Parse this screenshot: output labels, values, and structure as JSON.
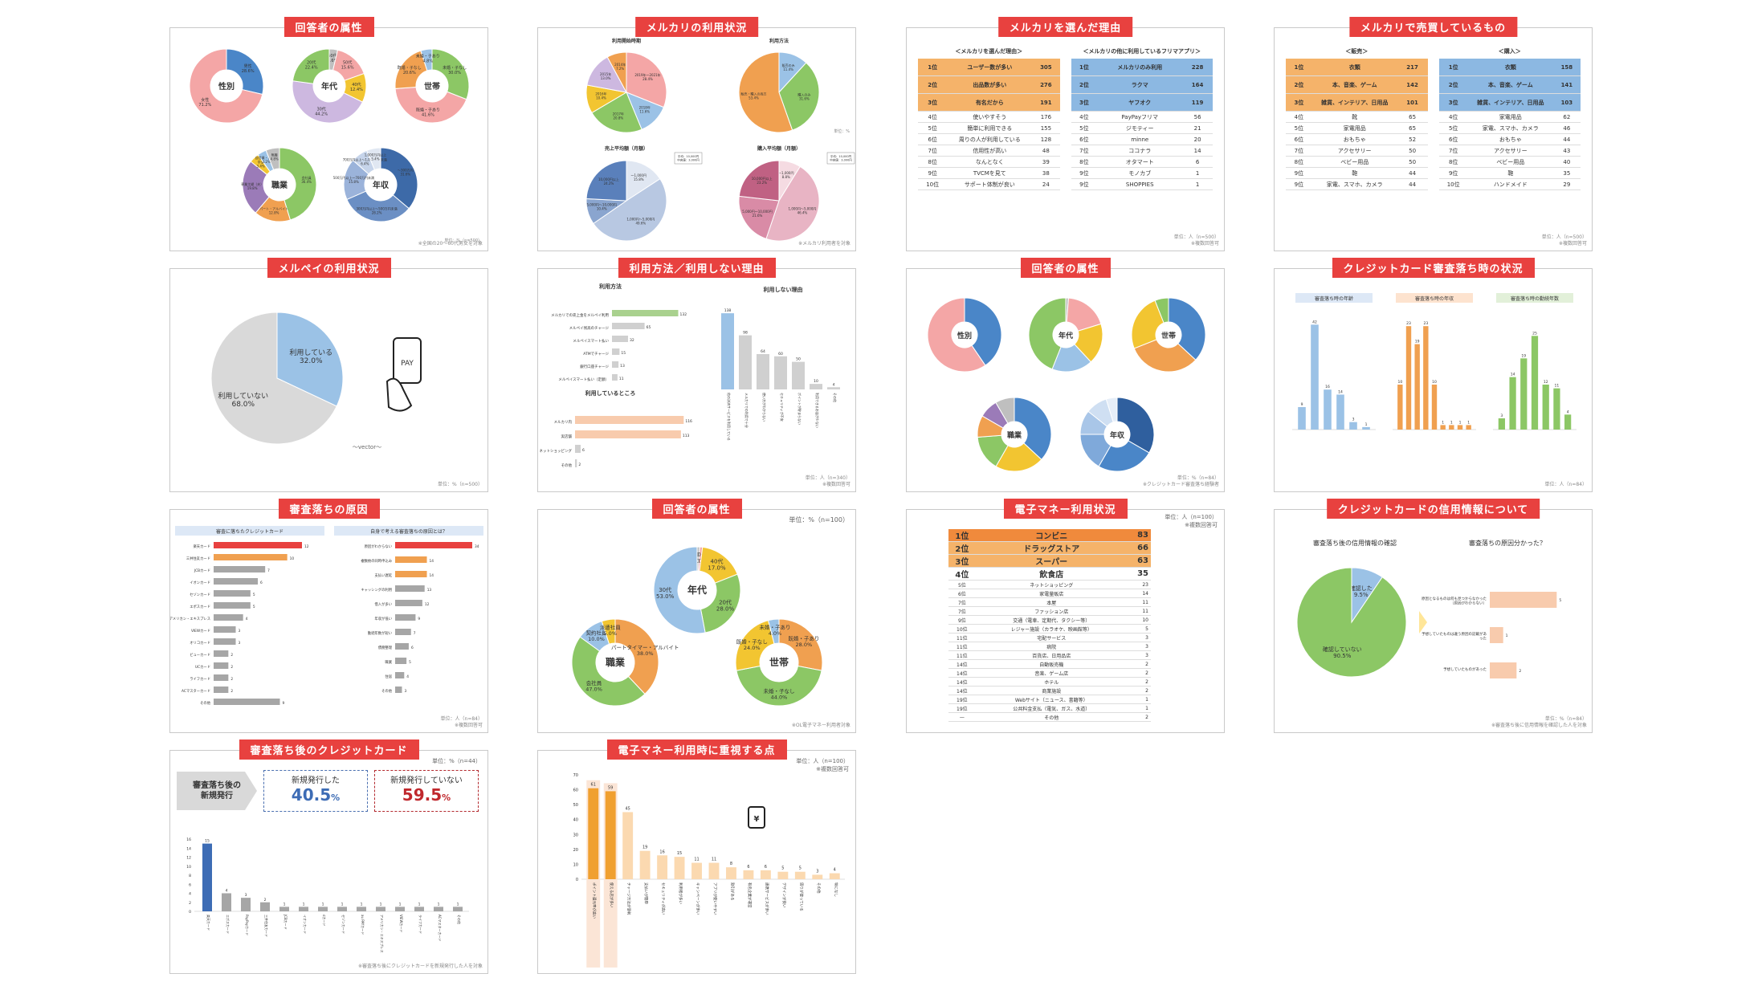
{
  "colors": {
    "red": "#e8413f",
    "blue": "#4a86c8",
    "pink": "#f4a6a6",
    "yellow": "#f2c531",
    "green": "#8cc765",
    "lav": "#cdb8e0",
    "orange": "#f0a050",
    "gray": "#bfbfbf",
    "lblue": "#9bc2e6",
    "purple": "#9b7bb8"
  },
  "panels": {
    "p1": {
      "title": "回答者の属性",
      "unit": "単位：%（n=500）",
      "note": "※全国の20～60代男女を対象",
      "charts": [
        {
          "center": "性別",
          "labels": [
            "男性\n28.6%",
            "女性\n71.2%"
          ],
          "values": [
            28.6,
            71.2
          ]
        },
        {
          "center": "年代",
          "labels": [
            "60代\n3.6%",
            "50代\n15.6%",
            "40代\n12.4%",
            "30代\n44.2%",
            "20代\n22.4%"
          ],
          "values": [
            3.6,
            15.6,
            12.4,
            44.2,
            22.4
          ]
        },
        {
          "center": "世帯",
          "labels": [
            "未婚・子なし\n30.0%",
            "既婚・子あり\n41.6%",
            "既婚・子なし\n20.6%",
            "未婚・子あり\n4.8%"
          ],
          "values": [
            30.0,
            41.6,
            20.6,
            4.8
          ]
        },
        {
          "center": "職業",
          "labels": [
            "会社員\n36.4%",
            "パート・アルバイト\n12.8%",
            "専業主婦（夫）\n19.8%",
            "学生\n3.4%",
            "自営業・自由業\n3.2%",
            "無職\n4.8%"
          ],
          "values": [
            36.4,
            12.8,
            19.8,
            3.4,
            3.2,
            4.8
          ]
        },
        {
          "center": "年収",
          "labels": [
            "～300万円\n31.6%",
            "300万円以上～500万円未満\n28.2%",
            "500万円以上～700万円未満\n15.8%",
            "700万円以上～1,000万円未満\n6.4%",
            "1,000万円以上\n5.4%"
          ],
          "values": [
            31.6,
            28.2,
            15.8,
            6.4,
            5.4
          ]
        }
      ]
    },
    "p2": {
      "title": "メルカリの利用状況",
      "unit": "単位：%",
      "note": "※メルカリ利用者を対象",
      "subs": [
        "利用開始時期",
        "利用方法",
        "売上平均額（月額）",
        "購入平均額（月額）"
      ],
      "charts": [
        {
          "labels": [
            "2019年～2021年\n28.4%",
            "2018年\n11.6%",
            "2017年\n20.8%",
            "2016年\n10.4%",
            "2015年\n13.0%",
            "2014年\n7.2%"
          ],
          "values": [
            28.4,
            11.6,
            20.8,
            10.4,
            13.0,
            7.2
          ]
        },
        {
          "labels": [
            "販売のみ\n11.4%",
            "購入のみ\n31.6%",
            "販売・購入の両方\n53.4%"
          ],
          "values": [
            11.4,
            31.6,
            53.4
          ]
        },
        {
          "labels": [
            "～1,000円\n15.8%",
            "1,000円～5,000円\n49.6%",
            "5,000円～10,000円\n10.4%",
            "10,000円以上\n24.2%"
          ],
          "values": [
            15.8,
            49.6,
            10.4,
            24.2
          ],
          "box": "平均：10,000円\n中央値：3,000円"
        },
        {
          "labels": [
            "～1,000円\n8.8%",
            "1,000円～5,000円\n46.4%",
            "5,000円～10,000円\n21.6%",
            "10,000円以上\n23.2%"
          ],
          "values": [
            8.8,
            46.4,
            21.6,
            23.2
          ],
          "box": "平均：10,000円\n中央値：3,000円"
        }
      ]
    },
    "p3": {
      "title": "メルカリを選んだ理由",
      "unit": "単位：人（n=500）",
      "note": "※複数回答可",
      "left": {
        "head": "＜メルカリを選んだ理由＞",
        "rows": [
          [
            "1位",
            "ユーザー数が多い",
            "305"
          ],
          [
            "2位",
            "出品数が多い",
            "276"
          ],
          [
            "3位",
            "有名だから",
            "191"
          ],
          [
            "4位",
            "使いやすそう",
            "176"
          ],
          [
            "5位",
            "簡単に利用できる",
            "155"
          ],
          [
            "6位",
            "周りの人が利用している",
            "128"
          ],
          [
            "7位",
            "信用性が高い",
            "48"
          ],
          [
            "8位",
            "なんとなく",
            "39"
          ],
          [
            "9位",
            "TVCMを見て",
            "38"
          ],
          [
            "10位",
            "サポート体制が良い",
            "24"
          ]
        ]
      },
      "right": {
        "head": "＜メルカリの他に利用しているフリマアプリ＞",
        "rows": [
          [
            "1位",
            "メルカリのみ利用",
            "228"
          ],
          [
            "2位",
            "ラクマ",
            "164"
          ],
          [
            "3位",
            "ヤフオク",
            "119"
          ],
          [
            "4位",
            "PayPayフリマ",
            "56"
          ],
          [
            "5位",
            "ジモティー",
            "21"
          ],
          [
            "6位",
            "minne",
            "20"
          ],
          [
            "7位",
            "ココナラ",
            "14"
          ],
          [
            "8位",
            "オタマート",
            "6"
          ],
          [
            "9位",
            "モノカブ",
            "1"
          ],
          [
            "9位",
            "SHOPPIES",
            "1"
          ]
        ]
      }
    },
    "p4": {
      "title": "メルカリで売買しているもの",
      "unit": "単位：人（n=500）",
      "note": "※複数回答可",
      "left": {
        "head": "＜販売＞",
        "rows": [
          [
            "1位",
            "衣類",
            "217"
          ],
          [
            "2位",
            "本、音楽、ゲーム",
            "142"
          ],
          [
            "3位",
            "雑貨、インテリア、日用品",
            "101"
          ],
          [
            "4位",
            "靴",
            "65"
          ],
          [
            "5位",
            "家電用品",
            "65"
          ],
          [
            "6位",
            "おもちゃ",
            "52"
          ],
          [
            "7位",
            "アクセサリー",
            "50"
          ],
          [
            "8位",
            "ベビー用品",
            "50"
          ],
          [
            "9位",
            "鞄",
            "44"
          ],
          [
            "9位",
            "家電、スマホ、カメラ",
            "44"
          ]
        ]
      },
      "right": {
        "head": "＜購入＞",
        "rows": [
          [
            "1位",
            "衣類",
            "158"
          ],
          [
            "2位",
            "本、音楽、ゲーム",
            "141"
          ],
          [
            "3位",
            "雑貨、インテリア、日用品",
            "103"
          ],
          [
            "4位",
            "家電用品",
            "62"
          ],
          [
            "5位",
            "家電、スマホ、カメラ",
            "46"
          ],
          [
            "6位",
            "おもちゃ",
            "44"
          ],
          [
            "7位",
            "アクセサリー",
            "43"
          ],
          [
            "8位",
            "ベビー用品",
            "40"
          ],
          [
            "9位",
            "鞄",
            "35"
          ],
          [
            "10位",
            "ハンドメイド",
            "29"
          ]
        ]
      }
    },
    "p5": {
      "title": "メルペイの利用状況",
      "unit": "単位：%（n=500）",
      "labels": [
        "利用している\n32.0%",
        "利用していない\n68.0%"
      ],
      "values": [
        32.0,
        68.0
      ],
      "credit": "～vector～",
      "icon": "PAY"
    },
    "p6": {
      "title": "利用方法／利用しない理由",
      "unit": "単位：人（n=340）",
      "note": "※複数回答可",
      "a": {
        "sub": "利用方法",
        "cats": [
          "メルカリでの売上金をメルペイ利用",
          "メルペイ残高のチャージ",
          "メルペイスマート払い",
          "ATMでチャージ",
          "銀行口座チャージ",
          "メルペイスマート払い（定額）"
        ],
        "values": [
          132,
          65,
          32,
          15,
          13,
          11
        ],
        "max": 160
      },
      "b": {
        "sub": "利用しているところ",
        "cats": [
          "メルカリ内",
          "実店舗",
          "ネットショッピング",
          "その他"
        ],
        "values": [
          116,
          113,
          6,
          2
        ],
        "max": 120
      },
      "c": {
        "sub": "利用しない理由",
        "cats": [
          "他の決済サービスを利用している",
          "メルカリでの利用で十分",
          "使い方がわからない",
          "セキュリティが不安",
          "ポイントが貯まらない",
          "利用できるお店が少ない",
          "その他"
        ],
        "values": [
          138,
          98,
          64,
          60,
          50,
          10,
          4
        ],
        "max": 160
      }
    },
    "p7": {
      "title": "回答者の属性",
      "unit": "単位：%（n=84）",
      "note": "※クレジットカード審査落ち経験者",
      "charts": [
        {
          "center": "性別",
          "values": [
            40.5,
            59.5
          ]
        },
        {
          "center": "年代",
          "values": [
            1.2,
            19.0,
            17.9,
            17.9,
            44.0
          ]
        },
        {
          "center": "世帯",
          "values": [
            36.9,
            32.1,
            25.0,
            6.0
          ]
        },
        {
          "center": "職業",
          "values": [
            36.9,
            21.4,
            15.5,
            9.5,
            8.3,
            8.4
          ]
        },
        {
          "center": "年収",
          "values": [
            33.3,
            25.0,
            16.7,
            10.7,
            9.5,
            4.8
          ]
        }
      ]
    },
    "p8": {
      "title": "クレジットカード審査落ち時の状況",
      "unit": "単位：人（n=84）",
      "subs": [
        "審査落ち時の年齢",
        "審査落ち時の年収",
        "審査落ち時の勤続年数"
      ],
      "a": {
        "values": [
          9,
          42,
          16,
          14,
          3,
          1
        ],
        "max": 45
      },
      "b": {
        "values": [
          10,
          23,
          19,
          23,
          10,
          1,
          1,
          1,
          1
        ],
        "max": 25
      },
      "c": {
        "values": [
          3,
          14,
          19,
          25,
          12,
          11,
          4
        ],
        "max": 30
      }
    },
    "p9": {
      "title": "審査落ちの原因",
      "unit": "単位：人（n=84）",
      "note": "※複数回答可",
      "a": {
        "sub": "審査に落ちたクレジットカード",
        "cats": [
          "楽天カード",
          "三井住友カード",
          "JCBカード",
          "イオンカード",
          "セゾンカード",
          "エポスカード",
          "アメリカン・エキスプレス",
          "VIEWカード",
          "オリコカード",
          "ビューカード",
          "UCカード",
          "ライフカード",
          "ACマスターカード",
          "その他"
        ],
        "values": [
          12,
          10,
          7,
          6,
          5,
          5,
          4,
          3,
          3,
          2,
          2,
          2,
          2,
          9
        ],
        "max": 12
      },
      "b": {
        "sub": "自身で考える審査落ちの原因とは？",
        "cats": [
          "原因がわからない",
          "複数枚の同時申込み",
          "支払い遅延",
          "キャッシングの利用",
          "借入が多い",
          "年収が低い",
          "勤続年数が短い",
          "債務整理",
          "職業",
          "住居",
          "その他"
        ],
        "values": [
          34,
          14,
          14,
          13,
          12,
          9,
          7,
          6,
          5,
          4,
          3
        ],
        "max": 34
      }
    },
    "p10": {
      "title": "回答者の属性",
      "unit": "単位：%（n=100）",
      "charts": [
        {
          "center": "年代",
          "labels": [
            "60代\n1.0%",
            "50代\n1.0%",
            "40代\n17.0%",
            "20代\n28.0%",
            "30代\n53.0%"
          ],
          "values": [
            1.0,
            1.0,
            17.0,
            28.0,
            53.0
          ]
        },
        {
          "center": "職業",
          "labels": [
            "パートタイマー・アルバイト\n38.0%",
            "会社員\n47.0%",
            "契約社員\n10.0%",
            "派遣社員\n5.0%"
          ],
          "values": [
            38.0,
            47.0,
            10.0,
            5.0
          ]
        },
        {
          "center": "世帯",
          "labels": [
            "既婚・子あり\n28.0%",
            "未婚・子なし\n44.0%",
            "既婚・子なし\n24.0%",
            "未婚・子あり\n4.0%"
          ],
          "values": [
            28.0,
            44.0,
            24.0,
            4.0
          ]
        }
      ],
      "note": "※OL電子マネー利用者対象"
    },
    "p11": {
      "title": "電子マネー利用状況",
      "unit": "単位：人（n=100）",
      "note": "※複数回答可",
      "rows": [
        [
          "1位",
          "コンビニ",
          "83"
        ],
        [
          "2位",
          "ドラッグストア",
          "66"
        ],
        [
          "3位",
          "スーパー",
          "63"
        ],
        [
          "4位",
          "飲食店",
          "35"
        ],
        [
          "5位",
          "ネットショッピング",
          "23"
        ],
        [
          "6位",
          "家電量販店",
          "14"
        ],
        [
          "7位",
          "本屋",
          "11"
        ],
        [
          "7位",
          "ファッション店",
          "11"
        ],
        [
          "9位",
          "交通（電車、定期代、タクシー等）",
          "10"
        ],
        [
          "10位",
          "レジャー施設（カラオケ、映画館等）",
          "5"
        ],
        [
          "11位",
          "宅配サービス",
          "3"
        ],
        [
          "11位",
          "病院",
          "3"
        ],
        [
          "11位",
          "百貨店、日用品店",
          "3"
        ],
        [
          "14位",
          "自動販売機",
          "2"
        ],
        [
          "14位",
          "音楽、ゲーム店",
          "2"
        ],
        [
          "14位",
          "ホテル",
          "2"
        ],
        [
          "14位",
          "商業施設",
          "2"
        ],
        [
          "19位",
          "Webサイト（ニュース、書籍等）",
          "1"
        ],
        [
          "19位",
          "公共料金支払（電気、ガス、水道）",
          "1"
        ],
        [
          "—",
          "その他",
          "2"
        ]
      ]
    },
    "p12": {
      "title": "クレジットカードの信用情報について",
      "unit": "単位：%（n=84）",
      "note": "※審査落ち後に信用情報を確認した人を対象",
      "subs": [
        "審査落ち後の信用情報の確認",
        "審査落ちの原因分かった？"
      ],
      "pie": {
        "labels": [
          "確認した\n9.5%",
          "確認していない\n90.5%"
        ],
        "values": [
          9.5,
          90.5
        ]
      },
      "bars": {
        "cats": [
          "原因となるものは何も見つからなかった（原因がわからない）",
          "予想していたものは違う原因の記載があった",
          "予想していたものがあった"
        ],
        "values": [
          5,
          1,
          2
        ],
        "max": 6
      }
    },
    "p13": {
      "title": "審査落ち後のクレジットカード",
      "unit": "単位：%（n=44）",
      "note": "※審査落ち後にクレジットカードを新規発行した人を対象",
      "label": "審査落ち後の\n新規発行",
      "yes": {
        "label": "新規発行した",
        "value": "40.5",
        "unit": "%"
      },
      "no": {
        "label": "新規発行していない",
        "value": "59.5",
        "unit": "%"
      },
      "values": [
        15,
        4,
        3,
        2,
        1,
        1,
        1,
        1,
        1,
        1,
        1,
        1,
        1,
        1
      ],
      "cats": [
        "楽天カード",
        "エポスカード",
        "PayPayカード",
        "三井住友カード",
        "JCBカード",
        "イオンカード",
        "dカード",
        "セゾンカード",
        "au PAYカード",
        "アメリカン・エキスプレス",
        "VIEWカード",
        "ライフカード",
        "ACマスターカード",
        "その他"
      ],
      "max": 16
    },
    "p14": {
      "title": "電子マネー利用時に重視する点",
      "unit": "単位：人（n=100）",
      "note": "※複数回答可",
      "values": [
        61,
        59,
        45,
        19,
        16,
        15,
        11,
        11,
        8,
        6,
        6,
        5,
        5,
        3,
        4
      ],
      "max": 70,
      "cats": [
        "ポイント還元率が高い",
        "使える店が多い",
        "チャージ方法が便利",
        "支払いが簡単",
        "セキュリティが高い",
        "利用者が多い",
        "キャンペーンが多い",
        "アプリが使いやすい",
        "割引がある",
        "有名企業が運営",
        "連携サービスが多い",
        "デザインが良い",
        "周りが使っている",
        "その他",
        "特になし"
      ]
    }
  }
}
